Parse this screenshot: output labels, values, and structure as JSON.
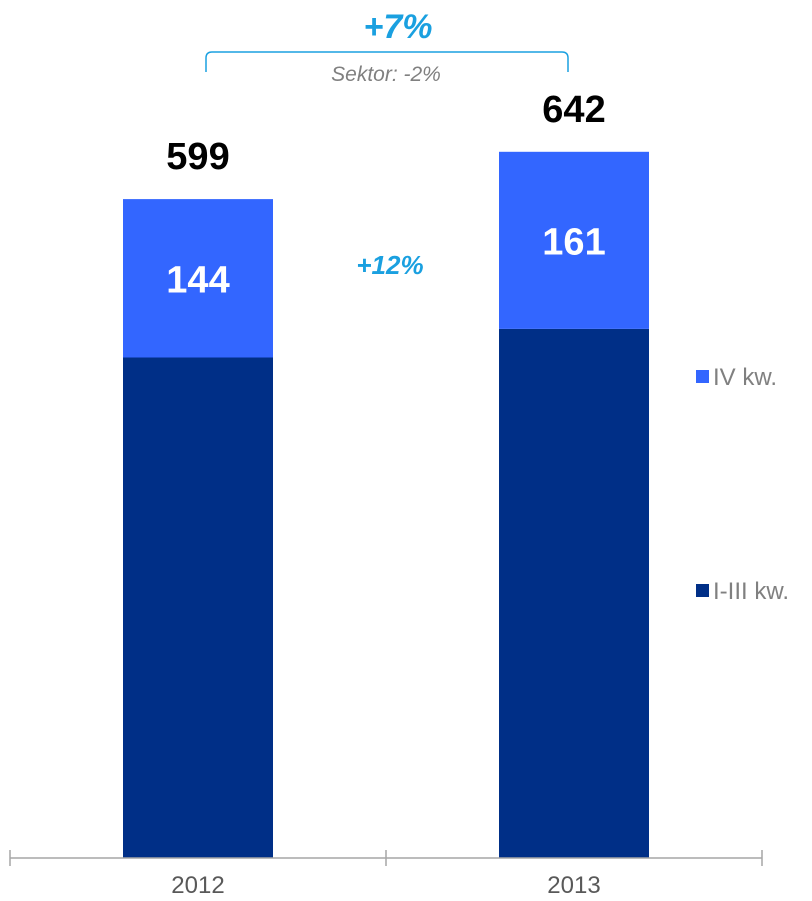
{
  "chart_data": {
    "type": "bar",
    "stacked": true,
    "categories": [
      "2012",
      "2013"
    ],
    "series": [
      {
        "name": "I-III kw.",
        "values": [
          455,
          481
        ],
        "color": "#002F87"
      },
      {
        "name": "IV kw.",
        "values": [
          144,
          161
        ],
        "color": "#3366FF"
      }
    ],
    "totals": [
      599,
      642
    ],
    "ylim": [
      0,
      700
    ],
    "grid": false,
    "legend_position": "right",
    "annotations": {
      "overall_growth": "+7%",
      "sector_note": "Sektor: -2%",
      "q4_growth": "+12%"
    },
    "annotation_color": "#1AA0E0",
    "axis_color": "#A6A6A6"
  }
}
